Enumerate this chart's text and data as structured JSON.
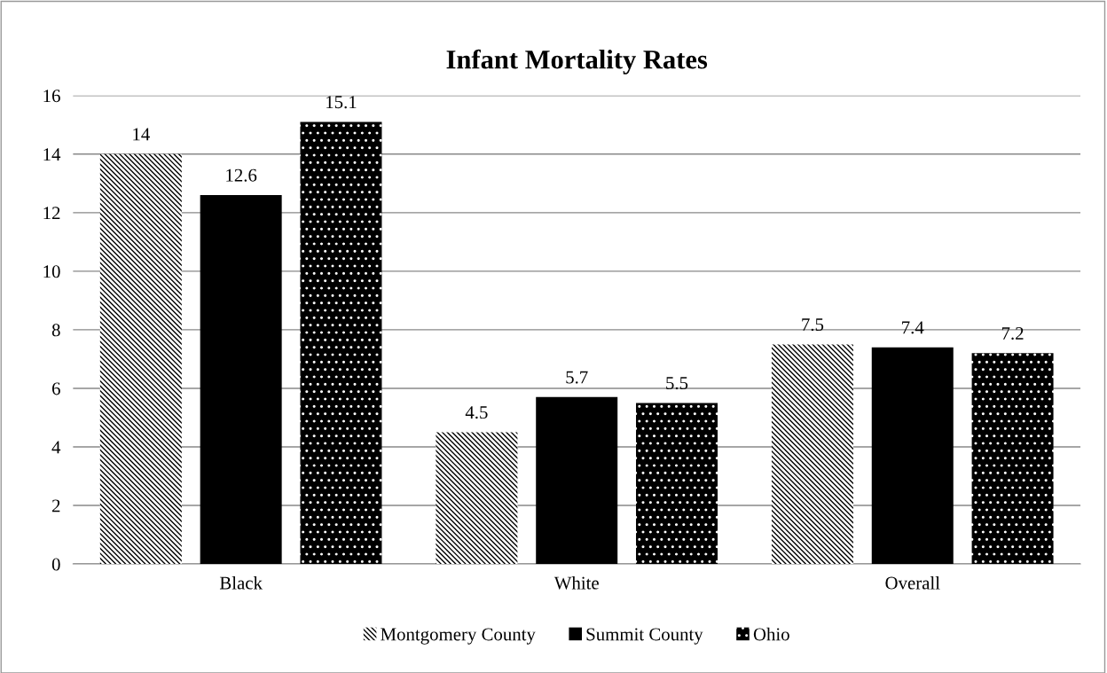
{
  "chart_data": {
    "type": "bar",
    "title": "Infant Mortality Rates",
    "categories": [
      "Black",
      "White",
      "Overall"
    ],
    "series": [
      {
        "name": "Montgomery County",
        "color": "#ffffff",
        "values": [
          14,
          4.5,
          7.5
        ]
      },
      {
        "name": "Summit County",
        "color": "#000000",
        "values": [
          12.6,
          5.7,
          7.4
        ]
      },
      {
        "name": "Ohio",
        "color": "#000000",
        "values": [
          15.1,
          5.5,
          7.2
        ]
      }
    ],
    "ylim": [
      0,
      16
    ],
    "yticks": [
      0,
      2,
      4,
      6,
      8,
      10,
      12,
      14,
      16
    ],
    "grid": "y",
    "legend": "bottom",
    "data_labels": true
  }
}
